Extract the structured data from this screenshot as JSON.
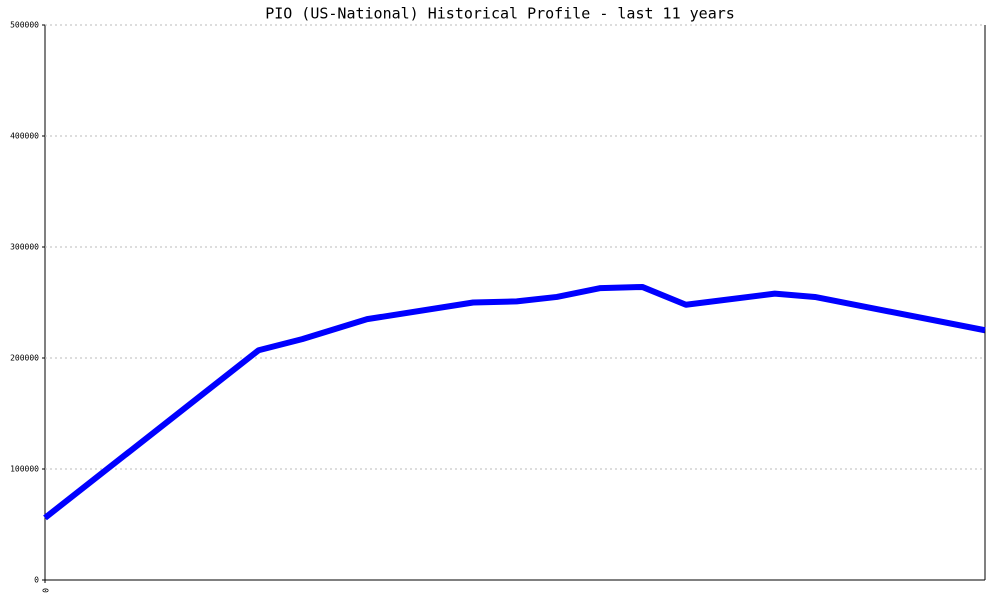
{
  "chart_data": {
    "type": "line",
    "title": "PIO (US-National) Historical Profile - last 11 years",
    "x": [
      0,
      2.5,
      3.01,
      3.77,
      5.01,
      5.52,
      5.99,
      6.5,
      6.99,
      7.5,
      8.54,
      9.01,
      11
    ],
    "series": [
      {
        "color": "#0000ff",
        "values": [
          56000,
          207000,
          217000,
          235000,
          250000,
          251000,
          255000,
          263000,
          264000,
          248000,
          258000,
          255000,
          225000
        ]
      }
    ],
    "xlim": [
      0,
      11
    ],
    "xticks": [
      0
    ],
    "ylim": [
      0,
      500000
    ],
    "yticks": [
      0,
      100000,
      200000,
      300000,
      400000,
      500000
    ],
    "grid": true
  }
}
